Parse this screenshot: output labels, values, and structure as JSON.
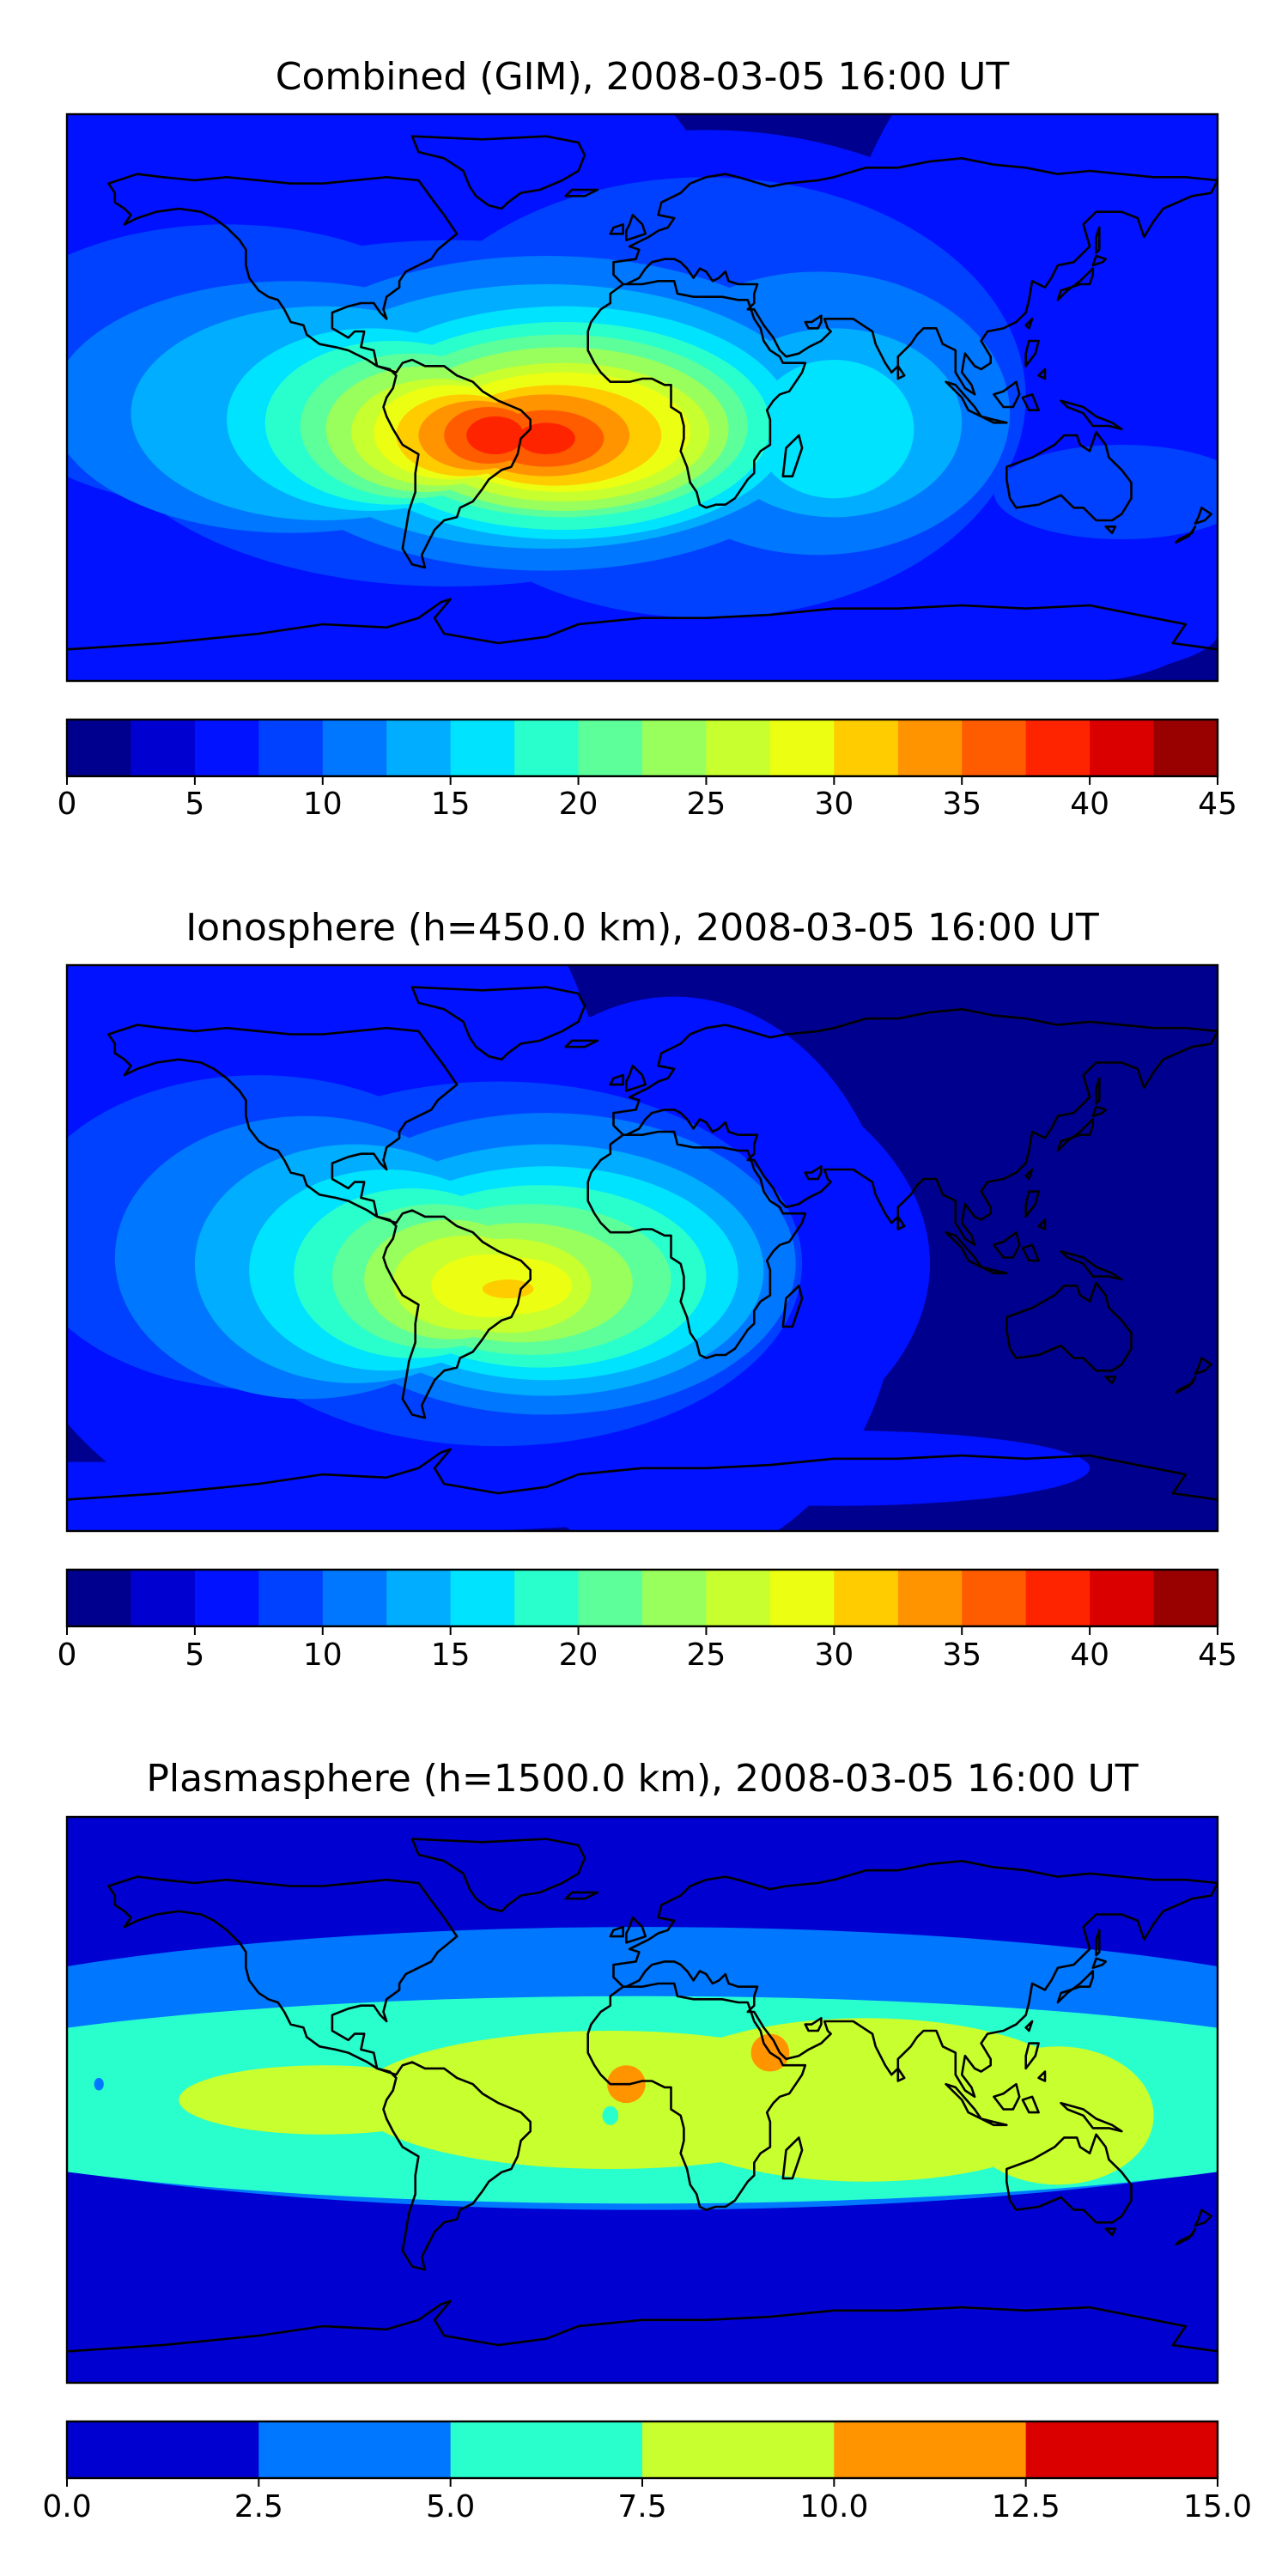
{
  "chart_data": [
    {
      "type": "heatmap",
      "title": "Combined (GIM), 2008-03-05 16:00 UT",
      "colorbar": {
        "boundaries": [
          0,
          2.5,
          5,
          7.5,
          10,
          12.5,
          15,
          17.5,
          20,
          22.5,
          25,
          27.5,
          30,
          32.5,
          35,
          37.5,
          40,
          42.5,
          45
        ],
        "tick_values": [
          0,
          5,
          10,
          15,
          20,
          25,
          30,
          35,
          40,
          45
        ],
        "tick_labels": [
          "0",
          "5",
          "10",
          "15",
          "20",
          "25",
          "30",
          "35",
          "40",
          "45"
        ],
        "colors": [
          "#00008f",
          "#0000d1",
          "#0012ff",
          "#0041ff",
          "#0077ff",
          "#00adff",
          "#00e3ff",
          "#29ffcd",
          "#5cff9a",
          "#99ff5d",
          "#c8ff2e",
          "#ecff12",
          "#ffcc00",
          "#ff9400",
          "#ff5c00",
          "#ff2400",
          "#db0000",
          "#990000"
        ]
      },
      "features": [
        {
          "name": "equatorial-anomaly-peak",
          "lon": -50,
          "lat": -12,
          "value": 39
        },
        {
          "name": "africa-lobe",
          "lon": -15,
          "lat": -13,
          "value": 37
        },
        {
          "name": "atlantic-trough-band",
          "lon": -120,
          "lat": 15,
          "value": 12
        },
        {
          "name": "asia-pacific-low",
          "lon": 120,
          "lat": 10,
          "value": 7
        }
      ]
    },
    {
      "type": "heatmap",
      "title": "Ionosphere  (h=450.0 km), 2008-03-05 16:00 UT",
      "colorbar": {
        "boundaries": [
          0,
          2.5,
          5,
          7.5,
          10,
          12.5,
          15,
          17.5,
          20,
          22.5,
          25,
          27.5,
          30,
          32.5,
          35,
          37.5,
          40,
          42.5,
          45
        ],
        "tick_values": [
          0,
          5,
          10,
          15,
          20,
          25,
          30,
          35,
          40,
          45
        ],
        "tick_labels": [
          "0",
          "5",
          "10",
          "15",
          "20",
          "25",
          "30",
          "35",
          "40",
          "45"
        ],
        "colors": [
          "#00008f",
          "#0000d1",
          "#0012ff",
          "#0041ff",
          "#0077ff",
          "#00adff",
          "#00e3ff",
          "#29ffcd",
          "#5cff9a",
          "#99ff5d",
          "#c8ff2e",
          "#ecff12",
          "#ffcc00",
          "#ff9400",
          "#ff5c00",
          "#ff2400",
          "#db0000",
          "#990000"
        ]
      },
      "features": [
        {
          "name": "equatorial-anomaly-peak",
          "lon": -45,
          "lat": -12,
          "value": 32
        },
        {
          "name": "south-america-lobe",
          "lon": -60,
          "lat": -5,
          "value": 26
        },
        {
          "name": "asia-pacific-low",
          "lon": 110,
          "lat": 5,
          "value": 3
        }
      ]
    },
    {
      "type": "heatmap",
      "title": "Plasmasphere (h=1500.0 km), 2008-03-05 16:00 UT",
      "colorbar": {
        "boundaries": [
          0,
          2.5,
          5,
          7.5,
          10,
          12.5,
          15
        ],
        "tick_values": [
          0,
          2.5,
          5,
          7.5,
          10,
          12.5,
          15
        ],
        "tick_labels": [
          "0.0",
          "2.5",
          "5.0",
          "7.5",
          "10.0",
          "12.5",
          "15.0"
        ],
        "colors": [
          "#0000d1",
          "#0077ff",
          "#29ffcd",
          "#c8ff2e",
          "#ff9400",
          "#db0000"
        ]
      },
      "features": [
        {
          "name": "low-latitude-band",
          "lon": 30,
          "lat": 0,
          "value": 8.5
        },
        {
          "name": "west-africa-spot",
          "lon": -5,
          "lat": 5,
          "value": 11
        },
        {
          "name": "red-sea-spot",
          "lon": 40,
          "lat": 15,
          "value": 11
        },
        {
          "name": "pacific-speck",
          "lon": -170,
          "lat": 5,
          "value": 3
        }
      ]
    }
  ]
}
